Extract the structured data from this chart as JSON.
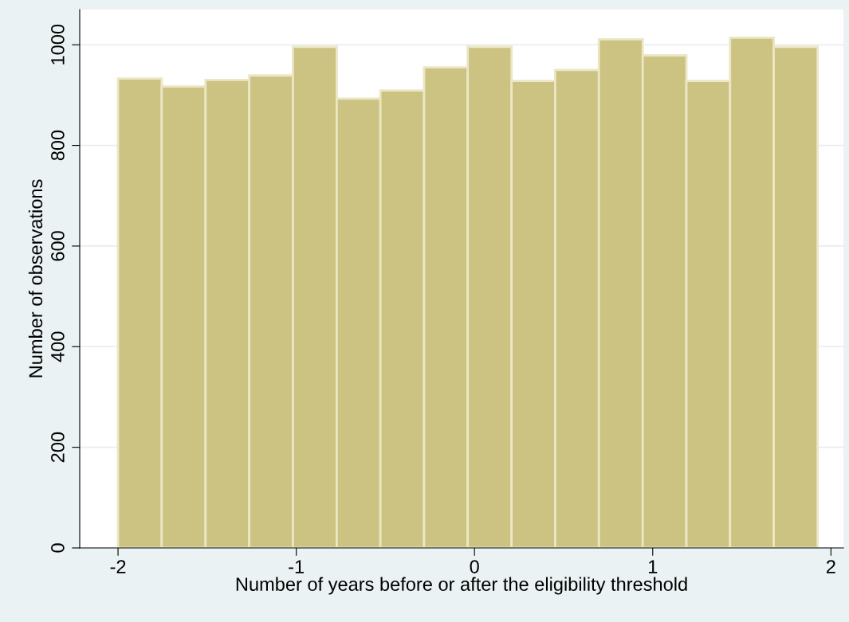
{
  "chart_data": {
    "type": "histogram",
    "xlabel": "Number of years before or after the eligibility threshold",
    "ylabel": "Number of observations",
    "bins": [
      -2.0,
      -1.755,
      -1.509,
      -1.264,
      -1.019,
      -0.773,
      -0.528,
      -0.283,
      -0.038,
      0.208,
      0.453,
      0.698,
      0.944,
      1.189,
      1.434,
      1.679,
      1.925
    ],
    "values": [
      933,
      917,
      930,
      939,
      996,
      893,
      909,
      955,
      996,
      928,
      950,
      1011,
      979,
      928,
      1014,
      996
    ],
    "color": "#ccc282",
    "xlim": [
      -2.215,
      2.07
    ],
    "xticks": [
      -2,
      -1,
      0,
      1,
      2
    ],
    "ylim": [
      0,
      1070
    ],
    "yticks": [
      0,
      200,
      400,
      600,
      800,
      1000
    ],
    "grid": "y",
    "legend": false
  }
}
